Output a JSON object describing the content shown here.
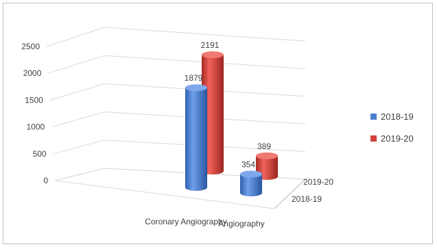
{
  "chart_data": {
    "type": "bar",
    "style": "3d-cylinder",
    "categories": [
      "Coronary Angiography",
      "Angiography"
    ],
    "depth_labels": [
      "2019-20",
      "2018-19"
    ],
    "series": [
      {
        "name": "2018-19",
        "values": [
          1879,
          354
        ],
        "color": "#4a7fd0"
      },
      {
        "name": "2019-20",
        "values": [
          2191,
          389
        ],
        "color": "#d0423a"
      }
    ],
    "y_ticks": [
      "0",
      "500",
      "1000",
      "1500",
      "2000",
      "2500"
    ],
    "ylim": [
      0,
      2500
    ],
    "grid": true,
    "legend_position": "right"
  }
}
